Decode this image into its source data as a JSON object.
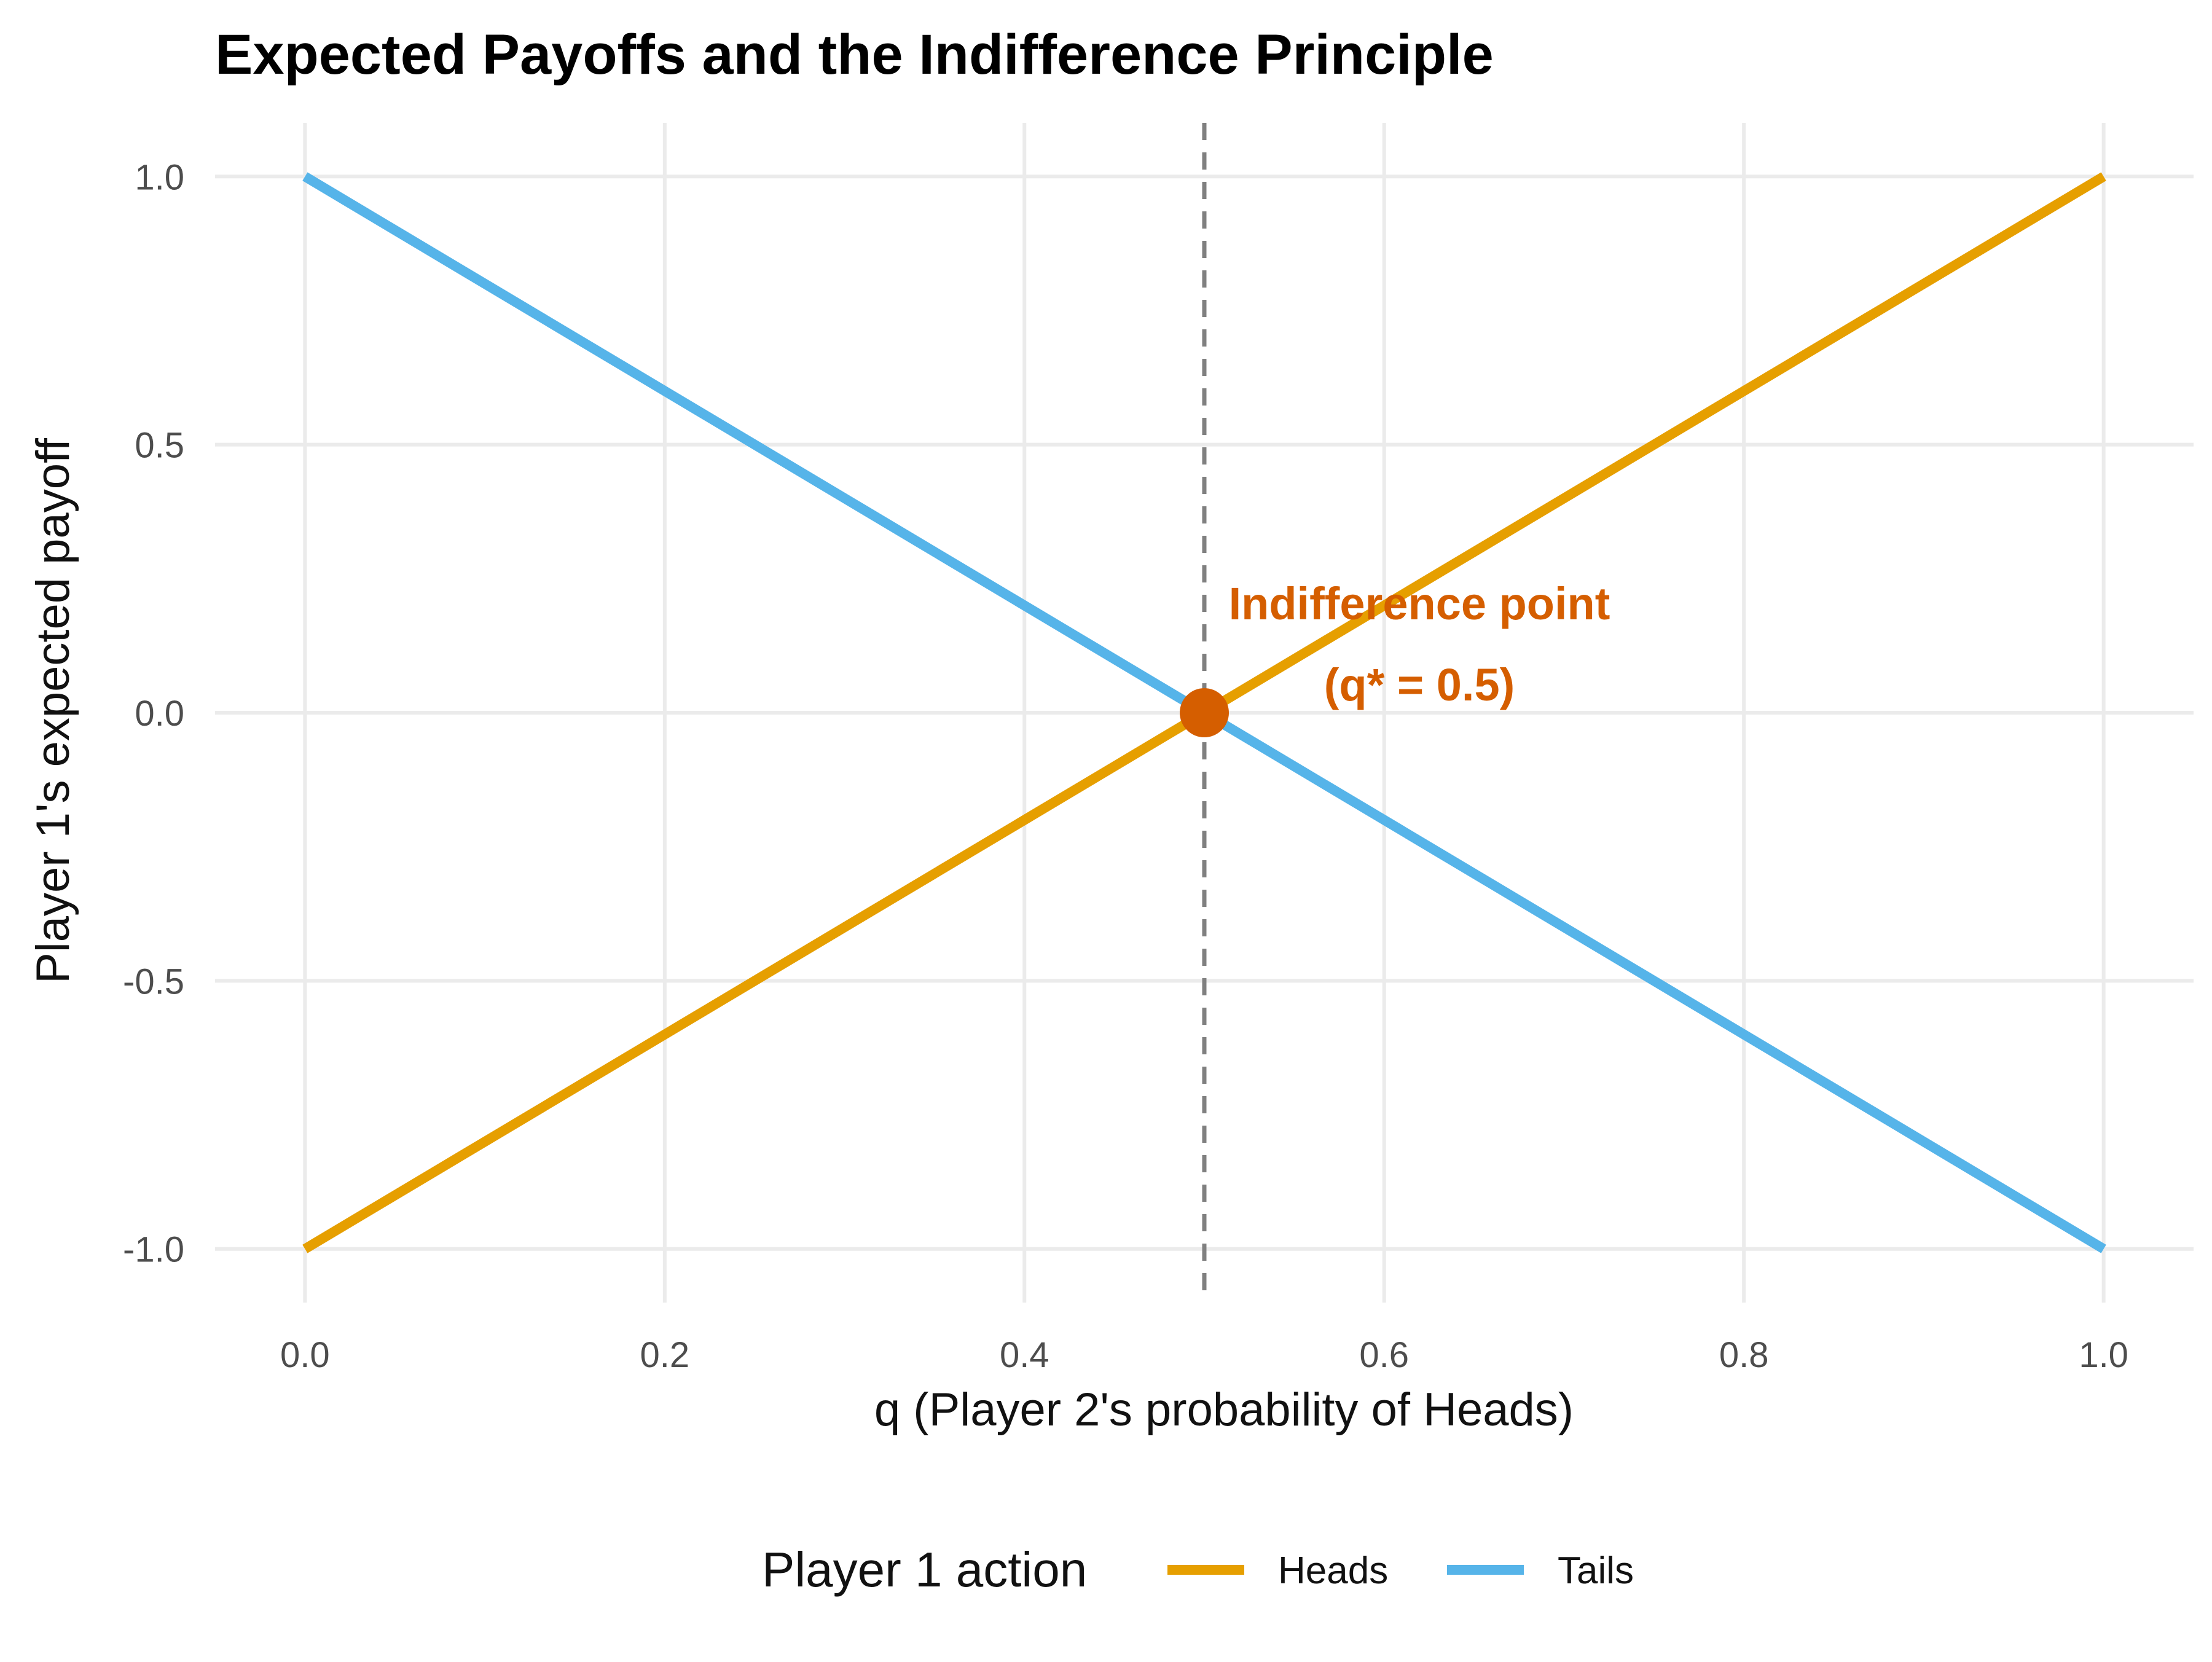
{
  "chart_data": {
    "type": "line",
    "title": "Expected Payoffs and the Indifference Principle",
    "xlabel": "q  (Player 2's probability of Heads)",
    "ylabel": "Player 1's expected payoff",
    "xlim": [
      -0.05,
      1.05
    ],
    "ylim": [
      -1.1,
      1.1
    ],
    "x_ticks": [
      0.0,
      0.2,
      0.4,
      0.6,
      0.8,
      1.0
    ],
    "x_tick_labels": [
      "0.0",
      "0.2",
      "0.4",
      "0.6",
      "0.8",
      "1.0"
    ],
    "y_ticks": [
      -1.0,
      -0.5,
      0.0,
      0.5,
      1.0
    ],
    "y_tick_labels": [
      "-1.0",
      "-0.5",
      "0.0",
      "0.5",
      "1.0"
    ],
    "grid": true,
    "series": [
      {
        "name": "Heads",
        "color": "#E69F00",
        "x": [
          0,
          1
        ],
        "y": [
          -1,
          1
        ]
      },
      {
        "name": "Tails",
        "color": "#56B4E9",
        "x": [
          0,
          1
        ],
        "y": [
          1,
          -1
        ]
      }
    ],
    "reference_line": {
      "orientation": "vertical",
      "x": 0.5,
      "style": "dashed",
      "color": "#808080"
    },
    "point": {
      "x": 0.5,
      "y": 0.0,
      "color": "#D55E00"
    },
    "annotation": {
      "lines": [
        "Indifference point",
        "(q* = 0.5)"
      ],
      "color": "#D55E00",
      "x": 0.5,
      "y": 0.0
    },
    "legend": {
      "title": "Player 1 action",
      "position": "bottom",
      "entries": [
        "Heads",
        "Tails"
      ]
    }
  }
}
